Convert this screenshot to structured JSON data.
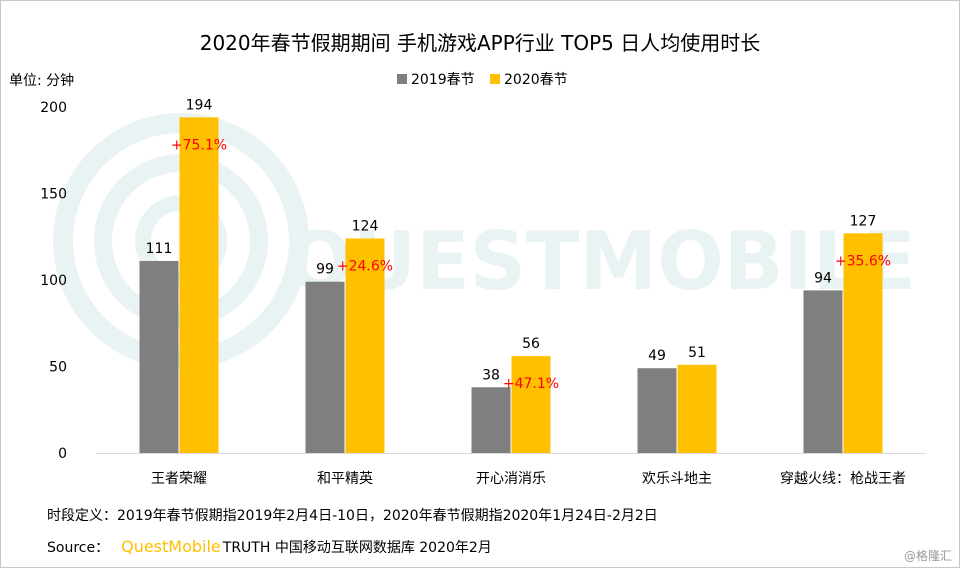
{
  "chart_data": {
    "type": "bar",
    "title": "2020年春节假期期间 手机游戏APP行业 TOP5 日人均使用时长",
    "unit_label": "单位: 分钟",
    "categories": [
      "王者荣耀",
      "和平精英",
      "开心消消乐",
      "欢乐斗地主",
      "穿越火线：枪战王者"
    ],
    "series": [
      {
        "name": "2019春节",
        "color": "#7f7f7f",
        "values": [
          111,
          99,
          38,
          49,
          94
        ]
      },
      {
        "name": "2020春节",
        "color": "#ffc000",
        "values": [
          194,
          124,
          56,
          51,
          127
        ]
      }
    ],
    "growth_labels": [
      "+75.1%",
      "+24.6%",
      "+47.1%",
      "",
      "+35.6%"
    ],
    "growth_color": "#ff0000",
    "ylim": [
      0,
      200
    ],
    "yticks": [
      0,
      50,
      100,
      150,
      200
    ],
    "grid": false,
    "legend_position": "top-center"
  },
  "footer": {
    "definition": "时段定义：2019年春节假期指2019年2月4日-10日，2020年春节假期指2020年1月24日-2月2日",
    "source_label": "Source：",
    "source_brand": "QuestMobile",
    "source_text": "TRUTH 中国移动互联网数据库 2020年2月",
    "credit": "@格隆汇"
  },
  "watermark": {
    "text": "QUESTMOBILE"
  },
  "colors": {
    "brand": "#ffc000",
    "axis": "#d9d9d9",
    "text": "#000000"
  }
}
